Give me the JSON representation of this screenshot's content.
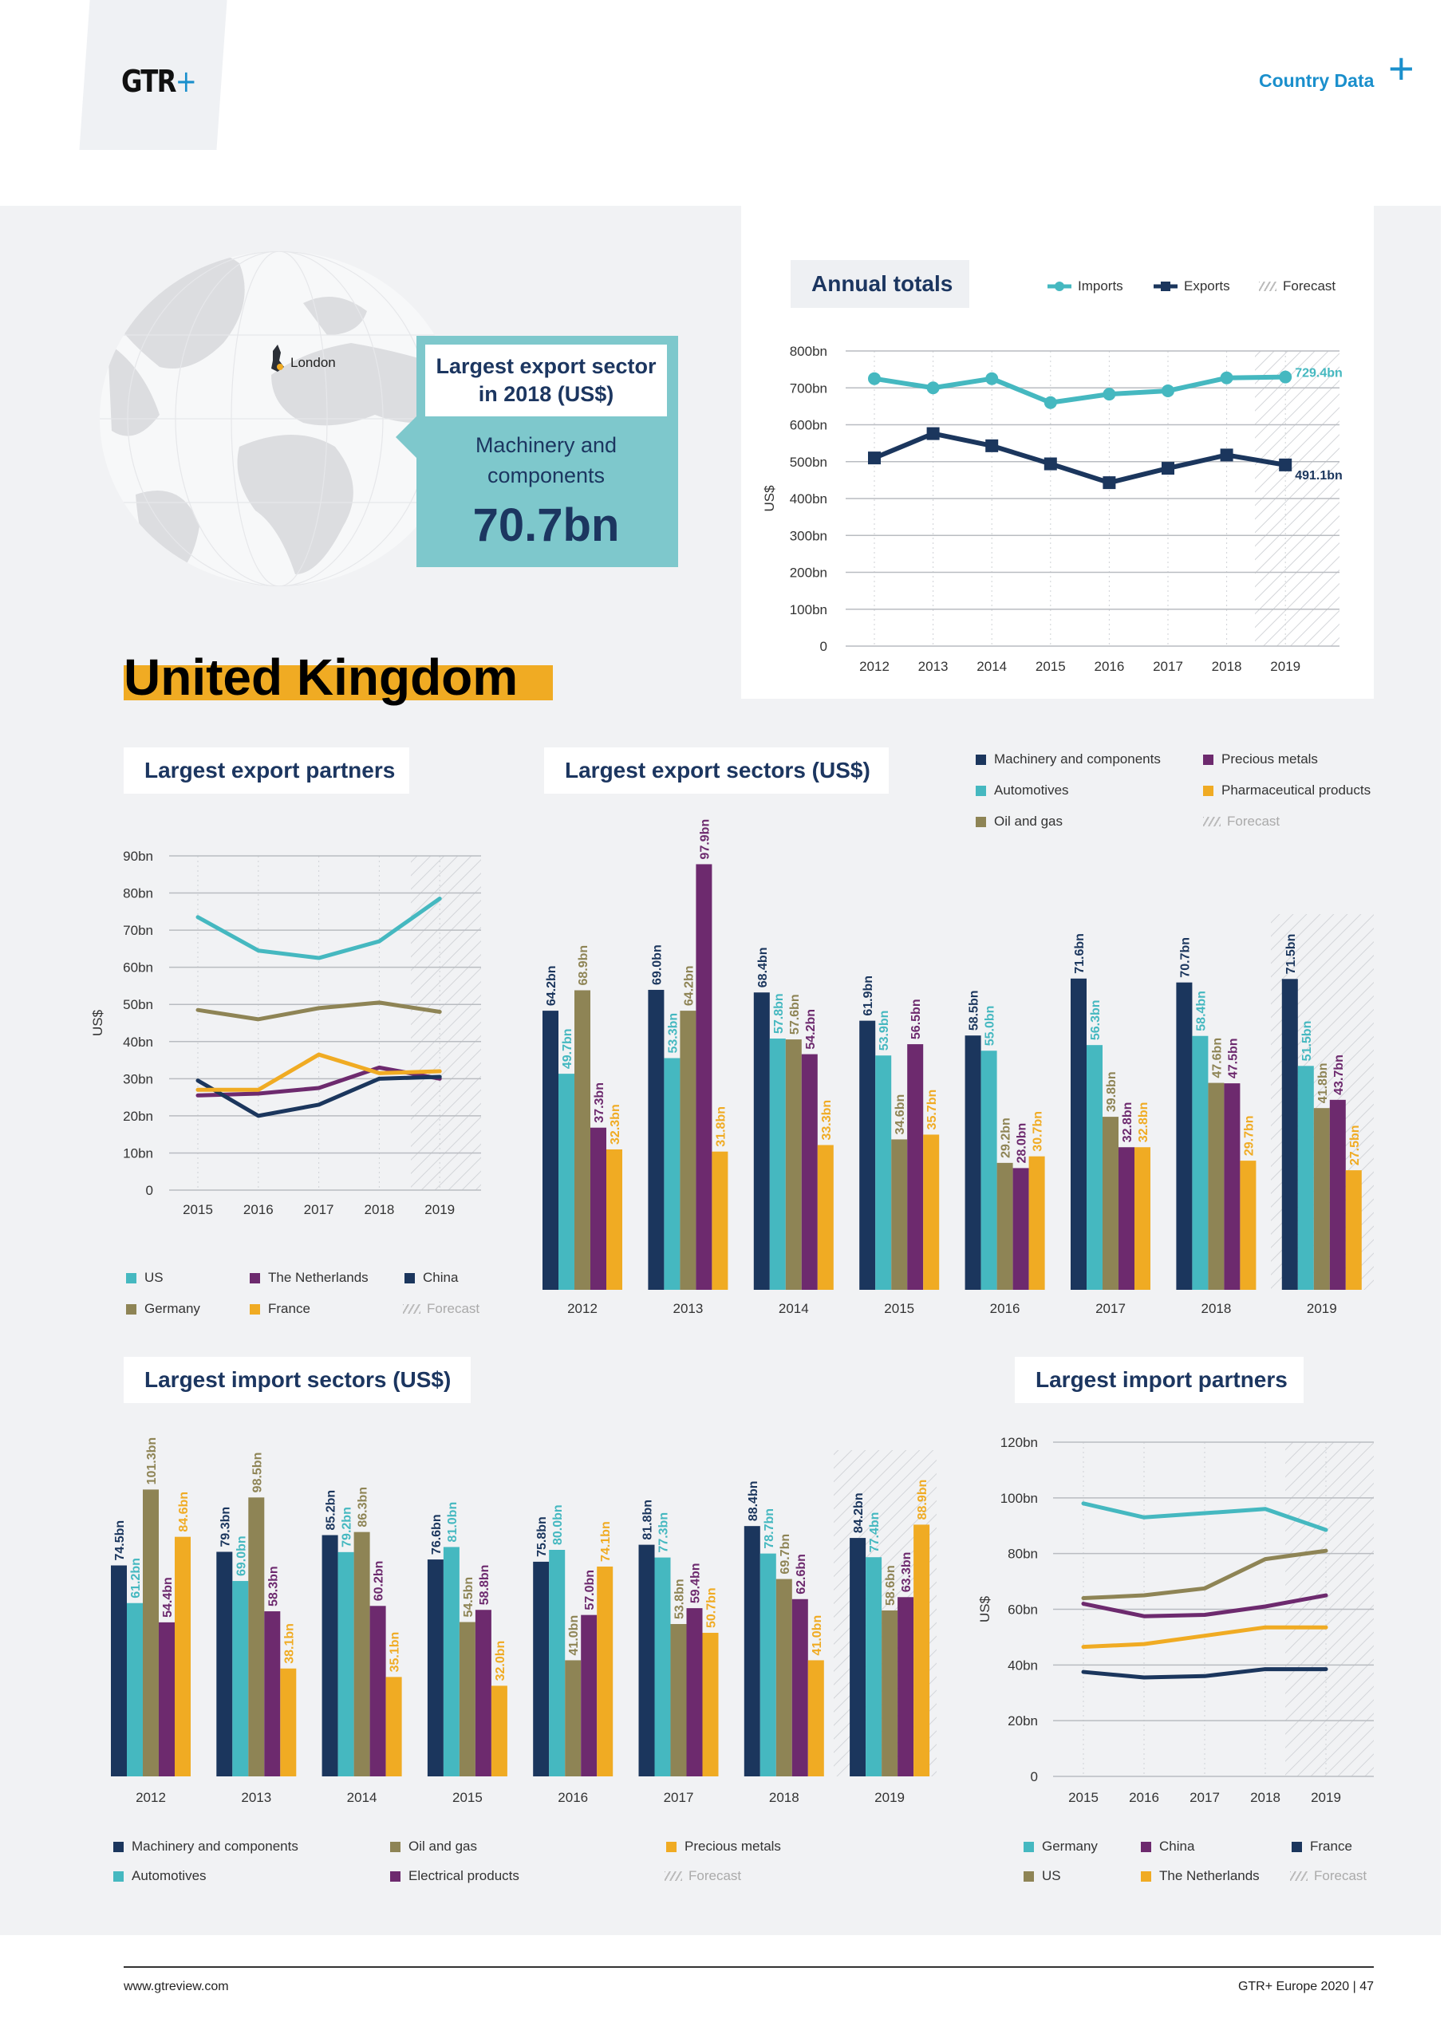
{
  "header": {
    "logo": "GTR",
    "logo_plus": "+",
    "section": "Country Data",
    "section_plus": "+"
  },
  "country": "United Kingdom",
  "map": {
    "city": "London"
  },
  "callout": {
    "title": "Largest export sector in 2018 (US$)",
    "sector": "Machinery and components",
    "value": "70.7bn"
  },
  "colors": {
    "navy": "#1b365d",
    "teal": "#45b8c0",
    "olive": "#8e8455",
    "purple": "#6d2a6e",
    "orange": "#f0ab23",
    "callout": "#7ec8cc",
    "accent_blue": "#1a8fcc"
  },
  "forecast_label": "Forecast",
  "chart_data": [
    {
      "id": "annual",
      "type": "line",
      "title": "Annual totals",
      "x": [
        "2012",
        "2013",
        "2014",
        "2015",
        "2016",
        "2017",
        "2018",
        "2019"
      ],
      "ylabel": "US$",
      "ylim": [
        0,
        800
      ],
      "yticks": [
        "0",
        "100bn",
        "200bn",
        "300bn",
        "400bn",
        "500bn",
        "600bn",
        "700bn",
        "800bn"
      ],
      "grid": true,
      "forecast_from": "2019",
      "legend": "top-right",
      "series": [
        {
          "name": "Imports",
          "color": "#45b8c0",
          "marker": "circle",
          "values": [
            725,
            700,
            725,
            660,
            683,
            692,
            727,
            729.4
          ],
          "end_label": "729.4bn"
        },
        {
          "name": "Exports",
          "color": "#1b365d",
          "marker": "square",
          "values": [
            510,
            576,
            543,
            494,
            443,
            482,
            518,
            491.1
          ],
          "end_label": "491.1bn"
        }
      ]
    },
    {
      "id": "export-partners",
      "type": "line",
      "title": "Largest export partners",
      "x": [
        "2015",
        "2016",
        "2017",
        "2018",
        "2019"
      ],
      "ylabel": "US$",
      "ylim": [
        0,
        90
      ],
      "yticks": [
        "0",
        "10bn",
        "20bn",
        "30bn",
        "40bn",
        "50bn",
        "60bn",
        "70bn",
        "80bn",
        "90bn"
      ],
      "grid": true,
      "forecast_from": "2019",
      "legend": "bottom",
      "series": [
        {
          "name": "US",
          "color": "#45b8c0",
          "values": [
            73.5,
            64.5,
            62.5,
            67,
            78.5
          ]
        },
        {
          "name": "The Netherlands",
          "color": "#6d2a6e",
          "values": [
            25.5,
            26,
            27.5,
            33,
            30
          ]
        },
        {
          "name": "China",
          "color": "#1b365d",
          "values": [
            29.5,
            20,
            23,
            30,
            30.5
          ]
        },
        {
          "name": "Germany",
          "color": "#8e8455",
          "values": [
            48.5,
            46,
            49,
            50.5,
            48
          ]
        },
        {
          "name": "France",
          "color": "#f0ab23",
          "values": [
            27,
            27,
            36.5,
            31.5,
            32
          ]
        }
      ]
    },
    {
      "id": "export-sectors",
      "type": "bar",
      "title": "Largest export sectors (US$)",
      "categories": [
        "2012",
        "2013",
        "2014",
        "2015",
        "2016",
        "2017",
        "2018",
        "2019"
      ],
      "forecast_from": "2019",
      "legend": "top-right",
      "unit": "bn",
      "series": [
        {
          "name": "Machinery and components",
          "color": "#1b365d",
          "values": [
            64.2,
            69.0,
            68.4,
            61.9,
            58.5,
            71.6,
            70.7,
            71.5
          ]
        },
        {
          "name": "Automotives",
          "color": "#45b8c0",
          "values": [
            49.7,
            53.3,
            57.8,
            53.9,
            55.0,
            56.3,
            58.4,
            51.5
          ]
        },
        {
          "name": "Oil and gas",
          "color": "#8e8455",
          "values": [
            68.9,
            64.2,
            57.6,
            34.6,
            29.2,
            39.8,
            47.6,
            41.8
          ]
        },
        {
          "name": "Precious metals",
          "color": "#6d2a6e",
          "values": [
            37.3,
            97.9,
            54.2,
            56.5,
            28.0,
            32.8,
            47.5,
            43.7
          ]
        },
        {
          "name": "Pharmaceutical products",
          "color": "#f0ab23",
          "values": [
            32.3,
            31.8,
            33.3,
            35.7,
            30.7,
            32.8,
            29.7,
            27.5
          ]
        }
      ]
    },
    {
      "id": "import-sectors",
      "type": "bar",
      "title": "Largest import sectors (US$)",
      "categories": [
        "2012",
        "2013",
        "2014",
        "2015",
        "2016",
        "2017",
        "2018",
        "2019"
      ],
      "forecast_from": "2019",
      "legend": "bottom",
      "unit": "bn",
      "series": [
        {
          "name": "Machinery and components",
          "color": "#1b365d",
          "values": [
            74.5,
            79.3,
            85.2,
            76.6,
            75.8,
            81.8,
            88.4,
            84.2
          ]
        },
        {
          "name": "Automotives",
          "color": "#45b8c0",
          "values": [
            61.2,
            69.0,
            79.2,
            81.0,
            80.0,
            77.3,
            78.7,
            77.4
          ]
        },
        {
          "name": "Oil and gas",
          "color": "#8e8455",
          "values": [
            101.3,
            98.5,
            86.3,
            54.5,
            41.0,
            53.8,
            69.7,
            58.6
          ]
        },
        {
          "name": "Electrical products",
          "color": "#6d2a6e",
          "values": [
            54.4,
            58.3,
            60.2,
            58.8,
            57.0,
            59.4,
            62.6,
            63.3
          ]
        },
        {
          "name": "Precious metals",
          "color": "#f0ab23",
          "values": [
            84.6,
            38.1,
            35.1,
            32.0,
            74.1,
            50.7,
            41.0,
            88.9
          ]
        }
      ]
    },
    {
      "id": "import-partners",
      "type": "line",
      "title": "Largest import partners",
      "x": [
        "2015",
        "2016",
        "2017",
        "2018",
        "2019"
      ],
      "ylabel": "US$",
      "ylim": [
        0,
        120
      ],
      "yticks": [
        "0",
        "20bn",
        "40bn",
        "60bn",
        "80bn",
        "100bn",
        "120bn"
      ],
      "grid": true,
      "forecast_from": "2019",
      "legend": "bottom",
      "series": [
        {
          "name": "Germany",
          "color": "#45b8c0",
          "values": [
            98,
            93,
            94.5,
            96,
            88.5
          ]
        },
        {
          "name": "China",
          "color": "#6d2a6e",
          "values": [
            62,
            57.5,
            58,
            61,
            65
          ]
        },
        {
          "name": "France",
          "color": "#1b365d",
          "values": [
            37.5,
            35.5,
            36,
            38.5,
            38.5
          ]
        },
        {
          "name": "US",
          "color": "#8e8455",
          "values": [
            64,
            65,
            67.5,
            78,
            81
          ]
        },
        {
          "name": "The Netherlands",
          "color": "#f0ab23",
          "values": [
            46.5,
            47.5,
            50.5,
            53.5,
            53.5
          ]
        }
      ]
    }
  ],
  "footer": {
    "url": "www.gtreview.com",
    "publication": "GTR+ Europe 2020 | 47"
  }
}
